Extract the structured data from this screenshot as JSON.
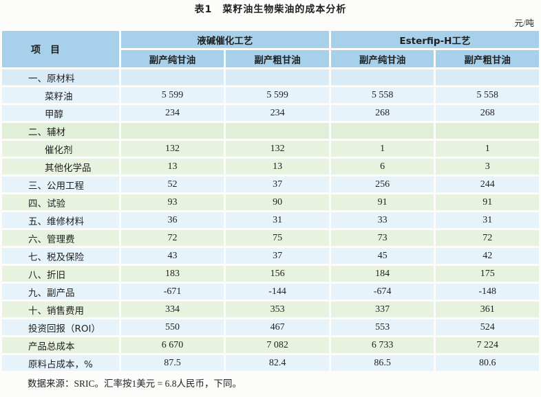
{
  "title": "表1　菜籽油生物柴油的成本分析",
  "unit": "元/吨",
  "table": {
    "corner_header": "项　目",
    "groups": [
      {
        "label": "液碱催化工艺",
        "subcolumns": [
          "副产纯甘油",
          "副产粗甘油"
        ]
      },
      {
        "label": "Esterfip-H工艺",
        "subcolumns": [
          "副产纯甘油",
          "副产粗甘油"
        ]
      }
    ],
    "rows": [
      {
        "label": "一、原材料",
        "indent": 0,
        "tone": "blue-section",
        "values": [
          "",
          "",
          "",
          ""
        ]
      },
      {
        "label": "菜籽油",
        "indent": 1,
        "tone": "blue",
        "values": [
          "5 599",
          "5 599",
          "5 558",
          "5 558"
        ]
      },
      {
        "label": "甲醇",
        "indent": 1,
        "tone": "blue",
        "values": [
          "234",
          "234",
          "268",
          "268"
        ]
      },
      {
        "label": "二、辅材",
        "indent": 0,
        "tone": "green-section",
        "values": [
          "",
          "",
          "",
          ""
        ]
      },
      {
        "label": "催化剂",
        "indent": 1,
        "tone": "green",
        "values": [
          "132",
          "132",
          "1",
          "1"
        ]
      },
      {
        "label": "其他化学品",
        "indent": 1,
        "tone": "green",
        "values": [
          "13",
          "13",
          "6",
          "3"
        ]
      },
      {
        "label": "三、公用工程",
        "indent": 0,
        "tone": "blue",
        "values": [
          "52",
          "37",
          "256",
          "244"
        ]
      },
      {
        "label": "四、试验",
        "indent": 0,
        "tone": "green",
        "values": [
          "93",
          "90",
          "91",
          "91"
        ]
      },
      {
        "label": "五、维修材料",
        "indent": 0,
        "tone": "blue",
        "values": [
          "36",
          "31",
          "33",
          "31"
        ]
      },
      {
        "label": "六、管理费",
        "indent": 0,
        "tone": "green",
        "values": [
          "72",
          "75",
          "73",
          "72"
        ]
      },
      {
        "label": "七、税及保险",
        "indent": 0,
        "tone": "blue",
        "values": [
          "43",
          "37",
          "45",
          "42"
        ]
      },
      {
        "label": "八、折旧",
        "indent": 0,
        "tone": "green",
        "values": [
          "183",
          "156",
          "184",
          "175"
        ]
      },
      {
        "label": "九、副产品",
        "indent": 0,
        "tone": "blue",
        "values": [
          "-671",
          "-144",
          "-674",
          "-148"
        ]
      },
      {
        "label": "十、销售费用",
        "indent": 0,
        "tone": "green",
        "values": [
          "334",
          "353",
          "337",
          "361"
        ]
      },
      {
        "label": "投资回报（ROI）",
        "indent": 0,
        "tone": "blue",
        "values": [
          "550",
          "467",
          "553",
          "524"
        ]
      },
      {
        "label": "产品总成本",
        "indent": 0,
        "tone": "green",
        "values": [
          "6 670",
          "7 082",
          "6 733",
          "7 224"
        ]
      },
      {
        "label": "原料占成本，%",
        "indent": 0,
        "tone": "blue",
        "values": [
          "87.5",
          "82.4",
          "86.5",
          "80.6"
        ]
      }
    ]
  },
  "footnote": "数据来源：SRIC。汇率按1美元 = 6.8人民币，下同。",
  "colors": {
    "header_blue": "#a7d1ea",
    "row_blue": "#e7f3fb",
    "row_blue_section": "#d8ebf7",
    "row_green": "#e7f2df",
    "row_green_section": "#e1efd9",
    "page_background": "#fcfcfa",
    "text": "#1f1f1f"
  }
}
